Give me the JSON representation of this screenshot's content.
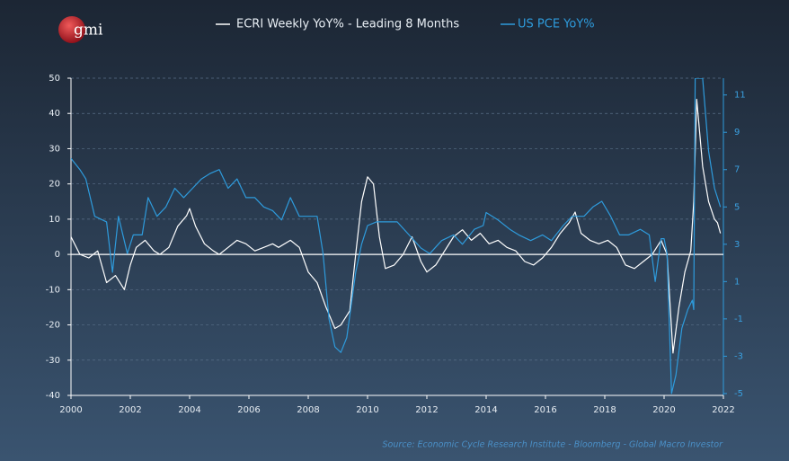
{
  "chart_data": {
    "type": "line",
    "logo": "gmi",
    "source": "Source: Economic Cycle Research Institute - Bloomberg - Global Macro Investor",
    "xlim": [
      2000,
      2022
    ],
    "xticks": [
      2000,
      2002,
      2004,
      2006,
      2008,
      2010,
      2012,
      2014,
      2016,
      2018,
      2020,
      2022
    ],
    "ylim": [
      -40,
      50
    ],
    "yticks": [
      -40,
      -30,
      -20,
      -10,
      0,
      10,
      20,
      30,
      40,
      50
    ],
    "y2lim": [
      -5.1,
      11.9
    ],
    "y2ticks": [
      -5,
      -3,
      -1,
      1,
      3,
      5,
      7,
      9,
      11
    ],
    "grid": true,
    "hlines": [
      0
    ],
    "series": [
      {
        "name": "ECRI Weekly YoY% - Leading 8 Months",
        "color": "#ffffff",
        "axis": "y",
        "x": [
          2000,
          2000.3,
          2000.6,
          2000.9,
          2001.2,
          2001.5,
          2001.8,
          2002.0,
          2002.2,
          2002.5,
          2002.8,
          2003.0,
          2003.3,
          2003.6,
          2003.9,
          2004.0,
          2004.2,
          2004.5,
          2004.8,
          2005.0,
          2005.3,
          2005.6,
          2005.9,
          2006.2,
          2006.5,
          2006.8,
          2007.0,
          2007.4,
          2007.7,
          2008.0,
          2008.3,
          2008.6,
          2008.9,
          2009.1,
          2009.4,
          2009.6,
          2009.8,
          2010.0,
          2010.2,
          2010.4,
          2010.6,
          2010.9,
          2011.2,
          2011.5,
          2011.8,
          2012.0,
          2012.3,
          2012.6,
          2012.9,
          2013.2,
          2013.5,
          2013.8,
          2014.1,
          2014.4,
          2014.7,
          2015.0,
          2015.3,
          2015.6,
          2015.9,
          2016.2,
          2016.5,
          2016.8,
          2017.0,
          2017.2,
          2017.5,
          2017.8,
          2018.1,
          2018.4,
          2018.7,
          2019.0,
          2019.3,
          2019.6,
          2019.9,
          2020.1,
          2020.3,
          2020.5,
          2020.7,
          2020.9,
          2021.0,
          2021.1,
          2021.3,
          2021.5,
          2021.7,
          2021.8,
          2021.9
        ],
        "values": [
          5,
          0,
          -1,
          1,
          -8,
          -6,
          -10,
          -3,
          2,
          4,
          1,
          0,
          2,
          8,
          11,
          13,
          8,
          3,
          1,
          0,
          2,
          4,
          3,
          1,
          2,
          3,
          2,
          4,
          2,
          -5,
          -8,
          -15,
          -21,
          -20,
          -16,
          0,
          15,
          22,
          20,
          5,
          -4,
          -3,
          0,
          5,
          -2,
          -5,
          -3,
          1,
          5,
          7,
          4,
          6,
          3,
          4,
          2,
          1,
          -2,
          -3,
          -1,
          2,
          6,
          9,
          12,
          6,
          4,
          3,
          4,
          2,
          -3,
          -4,
          -2,
          0,
          4,
          0,
          -28,
          -15,
          -5,
          1,
          15,
          44,
          25,
          15,
          10,
          9,
          6
        ]
      },
      {
        "name": "US PCE YoY%",
        "color": "#2e9bdc",
        "axis": "y2",
        "x": [
          2000,
          2000.3,
          2000.5,
          2000.8,
          2001.2,
          2001.4,
          2001.6,
          2001.9,
          2002.1,
          2002.4,
          2002.6,
          2002.9,
          2003.2,
          2003.5,
          2003.8,
          2004.1,
          2004.4,
          2004.7,
          2005.0,
          2005.3,
          2005.6,
          2005.9,
          2006.2,
          2006.5,
          2006.8,
          2007.1,
          2007.4,
          2007.7,
          2008.0,
          2008.3,
          2008.5,
          2008.7,
          2008.9,
          2009.1,
          2009.3,
          2009.6,
          2009.8,
          2010.0,
          2010.3,
          2010.7,
          2011.0,
          2011.4,
          2011.8,
          2012.1,
          2012.5,
          2012.9,
          2013.2,
          2013.6,
          2013.9,
          2014.0,
          2014.4,
          2014.8,
          2015.1,
          2015.5,
          2015.9,
          2016.2,
          2016.6,
          2016.9,
          2017.3,
          2017.6,
          2017.9,
          2018.2,
          2018.5,
          2018.8,
          2019.2,
          2019.5,
          2019.7,
          2019.9,
          2020.0,
          2020.1,
          2020.25,
          2020.4,
          2020.6,
          2020.8,
          2020.95,
          2021.0,
          2021.05,
          2021.3,
          2021.5,
          2021.7,
          2021.9
        ],
        "values": [
          7.6,
          7,
          6.5,
          4.5,
          4.2,
          1.5,
          4.5,
          2.5,
          3.5,
          3.5,
          5.5,
          4.5,
          5,
          6,
          5.5,
          6,
          6.5,
          6.8,
          7,
          6,
          6.5,
          5.5,
          5.5,
          5,
          4.8,
          4.3,
          5.5,
          4.5,
          4.5,
          4.5,
          2.5,
          -1,
          -2.5,
          -2.8,
          -2,
          1.5,
          3,
          4,
          4.2,
          4.2,
          4.2,
          3.5,
          2.8,
          2.5,
          3.2,
          3.5,
          3,
          3.8,
          4,
          4.7,
          4.3,
          3.8,
          3.5,
          3.2,
          3.5,
          3.2,
          4,
          4.5,
          4.5,
          5,
          5.3,
          4.5,
          3.5,
          3.5,
          3.8,
          3.5,
          1,
          3.3,
          3.3,
          2.5,
          -5,
          -4,
          -1.5,
          -0.5,
          0,
          -0.5,
          11.9,
          11.9,
          8,
          6,
          5
        ]
      }
    ]
  }
}
